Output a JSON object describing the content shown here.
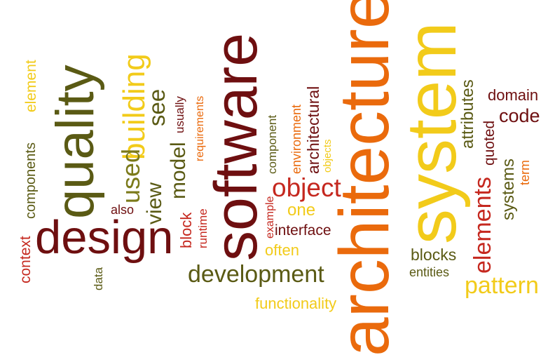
{
  "palette": {
    "dark_olive": "#5a5a14",
    "maroon": "#6e0f10",
    "orange": "#ea6a0c",
    "yellow": "#f2cb1a",
    "olive": "#7b7a1a",
    "red": "#c5281f",
    "gold": "#e8b416"
  },
  "words": [
    {
      "text": "architecture"
    },
    {
      "text": "system"
    },
    {
      "text": "software"
    },
    {
      "text": "quality"
    },
    {
      "text": "design"
    },
    {
      "text": "building"
    },
    {
      "text": "development"
    },
    {
      "text": "elements"
    },
    {
      "text": "object"
    },
    {
      "text": "pattern"
    },
    {
      "text": "model"
    },
    {
      "text": "see"
    },
    {
      "text": "used"
    },
    {
      "text": "view"
    },
    {
      "text": "code"
    },
    {
      "text": "architectural"
    },
    {
      "text": "interface"
    },
    {
      "text": "often"
    },
    {
      "text": "one"
    },
    {
      "text": "functionality"
    },
    {
      "text": "components"
    },
    {
      "text": "element"
    },
    {
      "text": "context"
    },
    {
      "text": "also"
    },
    {
      "text": "data"
    },
    {
      "text": "block"
    },
    {
      "text": "runtime"
    },
    {
      "text": "usually"
    },
    {
      "text": "requirements"
    },
    {
      "text": "component"
    },
    {
      "text": "environment"
    },
    {
      "text": "example"
    },
    {
      "text": "objects"
    },
    {
      "text": "blocks"
    },
    {
      "text": "entities"
    },
    {
      "text": "attributes"
    },
    {
      "text": "quoted"
    },
    {
      "text": "domain"
    },
    {
      "text": "systems"
    },
    {
      "text": "term"
    }
  ]
}
